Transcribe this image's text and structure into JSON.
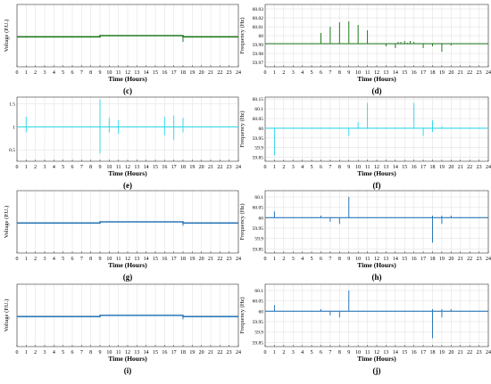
{
  "figure": {
    "panels": [
      "c",
      "d",
      "e",
      "f",
      "g",
      "h",
      "i",
      "j"
    ]
  },
  "chart_data": [
    {
      "id": "c",
      "caption": "(c)",
      "type": "line",
      "ylabel": "Voltage (P.U.)",
      "xlabel": "Time (Hours)",
      "color": "#1e7a1e",
      "xlim": [
        0,
        24
      ],
      "ylim": [
        0.6,
        1.4
      ],
      "xticks": [
        "0",
        "1",
        "2",
        "3",
        "4",
        "5",
        "6",
        "7",
        "8",
        "9",
        "10",
        "11",
        "12",
        "13",
        "14",
        "15",
        "16",
        "17",
        "18",
        "19",
        "20",
        "21",
        "22",
        "23",
        "24"
      ],
      "yticks": [],
      "grid": true,
      "series": [
        {
          "x": [
            0,
            9,
            9,
            18,
            18,
            18.2,
            24
          ],
          "y": [
            0.985,
            0.985,
            1.0,
            1.0,
            0.985,
            0.985,
            0.985
          ]
        }
      ],
      "spikes": [
        [
          18,
          0.92
        ]
      ]
    },
    {
      "id": "d",
      "caption": "(d)",
      "type": "line",
      "ylabel": "Frequency (Hz)",
      "xlabel": "Time (Hours)",
      "color": "#1e7a1e",
      "xlim": [
        0,
        24
      ],
      "ylim": [
        59.965,
        60.035
      ],
      "xticks": [
        "0",
        "1",
        "2",
        "3",
        "4",
        "5",
        "6",
        "7",
        "8",
        "9",
        "10",
        "11",
        "12",
        "13",
        "14",
        "15",
        "16",
        "17",
        "18",
        "19",
        "20",
        "21",
        "22",
        "23",
        "24"
      ],
      "yticks": [
        "59.97",
        "59.98",
        "59.99",
        "60",
        "60.01",
        "60.02",
        "60.03"
      ],
      "grid": true,
      "baseline": 59.991,
      "spikes": [
        [
          6,
          60.003
        ],
        [
          7,
          60.01
        ],
        [
          8,
          60.015
        ],
        [
          9,
          60.016
        ],
        [
          10,
          60.012
        ],
        [
          11,
          60.006
        ],
        [
          13,
          59.988
        ],
        [
          14,
          59.986
        ],
        [
          14.3,
          59.993
        ],
        [
          14.6,
          59.993
        ],
        [
          15,
          59.994
        ],
        [
          15.3,
          59.992
        ],
        [
          15.6,
          59.994
        ],
        [
          16,
          59.993
        ],
        [
          17,
          59.986
        ],
        [
          18,
          59.988
        ],
        [
          19,
          59.982
        ],
        [
          20,
          59.989
        ]
      ]
    },
    {
      "id": "e",
      "caption": "(e)",
      "type": "line",
      "ylabel": "",
      "xlabel": "Time (Hours)",
      "color": "#38d8ec",
      "xlim": [
        0,
        24
      ],
      "ylim": [
        0.25,
        1.65
      ],
      "xticks": [
        "0",
        "1",
        "2",
        "3",
        "4",
        "5",
        "6",
        "7",
        "8",
        "9",
        "10",
        "11",
        "12",
        "13",
        "14",
        "15",
        "16",
        "17",
        "18",
        "19",
        "20",
        "21",
        "22",
        "23",
        "24"
      ],
      "yticks": [
        "0.5",
        "1",
        "1.5"
      ],
      "grid": true,
      "baseline": 1.0,
      "spikes": [
        [
          1,
          1.22
        ],
        [
          1,
          0.88
        ],
        [
          9,
          1.6
        ],
        [
          9,
          0.42
        ],
        [
          10,
          1.2
        ],
        [
          10,
          0.88
        ],
        [
          11,
          1.15
        ],
        [
          11,
          0.85
        ],
        [
          16,
          1.22
        ],
        [
          16,
          0.82
        ],
        [
          17,
          1.25
        ],
        [
          17,
          0.72
        ],
        [
          18,
          1.2
        ],
        [
          18,
          0.88
        ]
      ]
    },
    {
      "id": "f",
      "caption": "(f)",
      "type": "line",
      "ylabel": "Frequency (Hz)",
      "xlabel": "Time (Hours)",
      "color": "#38d8ec",
      "xlim": [
        0,
        24
      ],
      "ylim": [
        59.83,
        60.16
      ],
      "xticks": [
        "0",
        "1",
        "2",
        "3",
        "4",
        "5",
        "6",
        "7",
        "8",
        "9",
        "10",
        "11",
        "12",
        "13",
        "14",
        "15",
        "16",
        "17",
        "18",
        "19",
        "20",
        "21",
        "22",
        "23",
        "24"
      ],
      "yticks": [
        "59.85",
        "59.9",
        "59.95",
        "60",
        "60.05",
        "60.1",
        "60.15"
      ],
      "grid": true,
      "baseline": 60.0,
      "spikes": [
        [
          1,
          59.86
        ],
        [
          9,
          59.96
        ],
        [
          10,
          60.03
        ],
        [
          11,
          60.13
        ],
        [
          16,
          60.13
        ],
        [
          17,
          59.96
        ],
        [
          18,
          60.04
        ],
        [
          18,
          59.98
        ],
        [
          19,
          60.01
        ]
      ]
    },
    {
      "id": "g",
      "caption": "(g)",
      "type": "line",
      "ylabel": "Voltage (P.U.)",
      "xlabel": "Time (Hours)",
      "color": "#2a78b8",
      "xlim": [
        0,
        24
      ],
      "ylim": [
        0.6,
        1.4
      ],
      "xticks": [
        "0",
        "1",
        "2",
        "3",
        "4",
        "5",
        "6",
        "7",
        "8",
        "9",
        "10",
        "11",
        "12",
        "13",
        "14",
        "15",
        "16",
        "17",
        "18",
        "19",
        "20",
        "21",
        "22",
        "23",
        "24"
      ],
      "yticks": [],
      "grid": true,
      "series": [
        {
          "x": [
            0,
            9,
            9,
            18,
            18,
            24
          ],
          "y": [
            0.985,
            0.985,
            1.0,
            1.0,
            0.985,
            0.985
          ]
        }
      ],
      "spikes": [
        [
          18,
          0.95
        ]
      ]
    },
    {
      "id": "h",
      "caption": "(h)",
      "type": "line",
      "ylabel": "Frequency (Hz)",
      "xlabel": "Time (Hours)",
      "color": "#2a78b8",
      "xlim": [
        0,
        24
      ],
      "ylim": [
        59.83,
        60.13
      ],
      "xticks": [
        "0",
        "1",
        "2",
        "3",
        "4",
        "5",
        "6",
        "7",
        "8",
        "9",
        "10",
        "11",
        "12",
        "13",
        "14",
        "15",
        "16",
        "17",
        "18",
        "19",
        "20",
        "21",
        "22",
        "23",
        "24"
      ],
      "yticks": [
        "59.85",
        "59.9",
        "59.95",
        "60",
        "60.05",
        "60.1"
      ],
      "grid": true,
      "baseline": 60.0,
      "spikes": [
        [
          1,
          60.03
        ],
        [
          6,
          60.01
        ],
        [
          7,
          59.98
        ],
        [
          8,
          59.97
        ],
        [
          9,
          60.1
        ],
        [
          18,
          59.88
        ],
        [
          18,
          60.01
        ],
        [
          19,
          59.97
        ],
        [
          19,
          60.01
        ],
        [
          20,
          60.01
        ]
      ]
    },
    {
      "id": "i",
      "caption": "(i)",
      "type": "line",
      "ylabel": "Voltage (P.U.)",
      "xlabel": "Time (Hours)",
      "color": "#2a78b8",
      "xlim": [
        0,
        24
      ],
      "ylim": [
        0.6,
        1.4
      ],
      "xticks": [
        "0",
        "1",
        "2",
        "3",
        "4",
        "5",
        "6",
        "7",
        "8",
        "9",
        "10",
        "11",
        "12",
        "13",
        "14",
        "15",
        "16",
        "17",
        "18",
        "19",
        "20",
        "21",
        "22",
        "23",
        "24"
      ],
      "yticks": [],
      "grid": true,
      "series": [
        {
          "x": [
            0,
            9,
            9,
            18,
            18,
            24
          ],
          "y": [
            0.985,
            0.985,
            1.0,
            1.0,
            0.985,
            0.985
          ]
        }
      ],
      "spikes": [
        [
          18,
          0.95
        ]
      ]
    },
    {
      "id": "j",
      "caption": "(j)",
      "type": "line",
      "ylabel": "Frequency (Hz)",
      "xlabel": "Time (Hours)",
      "color": "#2a78b8",
      "xlim": [
        0,
        24
      ],
      "ylim": [
        59.83,
        60.13
      ],
      "xticks": [
        "0",
        "1",
        "2",
        "3",
        "4",
        "5",
        "6",
        "7",
        "8",
        "9",
        "10",
        "11",
        "12",
        "13",
        "14",
        "15",
        "16",
        "17",
        "18",
        "19",
        "20",
        "21",
        "22",
        "23",
        "24"
      ],
      "yticks": [
        "59.85",
        "59.9",
        "59.95",
        "60",
        "60.05",
        "60.1"
      ],
      "grid": true,
      "baseline": 60.0,
      "spikes": [
        [
          1,
          60.03
        ],
        [
          6,
          60.01
        ],
        [
          7,
          59.98
        ],
        [
          8,
          59.97
        ],
        [
          9,
          60.1
        ],
        [
          18,
          59.87
        ],
        [
          18,
          60.01
        ],
        [
          19,
          59.97
        ],
        [
          19,
          60.01
        ],
        [
          20,
          60.01
        ]
      ]
    }
  ]
}
